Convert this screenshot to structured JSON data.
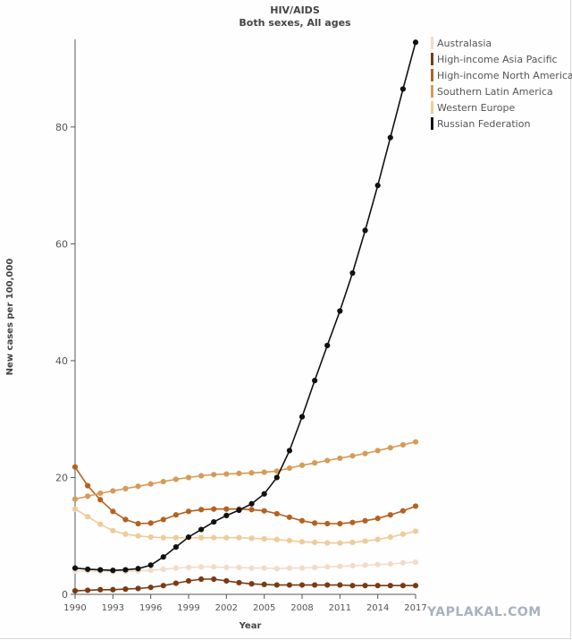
{
  "chart_data": {
    "type": "line",
    "title": "HIV/AIDS",
    "subtitle": "Both sexes, All ages",
    "xlabel": "Year",
    "ylabel": "New cases per 100,000",
    "xlim": [
      1990,
      2017
    ],
    "ylim": [
      0,
      95
    ],
    "x_ticks": [
      "1990",
      "1993",
      "1996",
      "1999",
      "2002",
      "2005",
      "2008",
      "2011",
      "2014",
      "2017"
    ],
    "y_ticks": [
      "0",
      "20",
      "40",
      "60",
      "80"
    ],
    "grid": false,
    "legend_position": "top-right",
    "x": [
      1990,
      1991,
      1992,
      1993,
      1994,
      1995,
      1996,
      1997,
      1998,
      1999,
      2000,
      2001,
      2002,
      2003,
      2004,
      2005,
      2006,
      2007,
      2008,
      2009,
      2010,
      2011,
      2012,
      2013,
      2014,
      2015,
      2016,
      2017
    ],
    "series": [
      {
        "name": "Australasia",
        "color": "#f2dcc8",
        "values": [
          4.0,
          4.0,
          3.9,
          3.9,
          3.9,
          4.0,
          4.1,
          4.3,
          4.5,
          4.6,
          4.7,
          4.7,
          4.6,
          4.6,
          4.5,
          4.5,
          4.4,
          4.5,
          4.5,
          4.6,
          4.7,
          4.8,
          4.9,
          5.0,
          5.1,
          5.2,
          5.4,
          5.5
        ]
      },
      {
        "name": "High-income Asia Pacific",
        "color": "#7a3a12",
        "values": [
          0.6,
          0.7,
          0.8,
          0.8,
          0.9,
          1.0,
          1.2,
          1.5,
          1.9,
          2.3,
          2.6,
          2.6,
          2.3,
          2.0,
          1.8,
          1.7,
          1.6,
          1.6,
          1.6,
          1.6,
          1.6,
          1.6,
          1.5,
          1.5,
          1.5,
          1.5,
          1.5,
          1.5
        ]
      },
      {
        "name": "High-income North America",
        "color": "#b5611f",
        "values": [
          21.8,
          18.6,
          16.2,
          14.2,
          12.8,
          12.1,
          12.2,
          12.8,
          13.6,
          14.2,
          14.5,
          14.6,
          14.6,
          14.6,
          14.5,
          14.3,
          13.8,
          13.2,
          12.6,
          12.2,
          12.1,
          12.1,
          12.3,
          12.6,
          13.0,
          13.6,
          14.3,
          15.1
        ]
      },
      {
        "name": "Southern Latin America",
        "color": "#d89a55",
        "values": [
          16.3,
          16.8,
          17.3,
          17.7,
          18.1,
          18.5,
          18.9,
          19.3,
          19.7,
          20.0,
          20.3,
          20.5,
          20.6,
          20.7,
          20.8,
          20.9,
          21.1,
          21.6,
          22.1,
          22.5,
          22.9,
          23.3,
          23.7,
          24.1,
          24.6,
          25.1,
          25.6,
          26.1
        ]
      },
      {
        "name": "Western Europe",
        "color": "#eecb98",
        "values": [
          14.6,
          13.3,
          12.0,
          10.9,
          10.3,
          10.0,
          9.8,
          9.7,
          9.7,
          9.7,
          9.7,
          9.7,
          9.7,
          9.7,
          9.6,
          9.5,
          9.4,
          9.2,
          9.0,
          8.9,
          8.8,
          8.8,
          8.9,
          9.1,
          9.4,
          9.8,
          10.3,
          10.8
        ]
      },
      {
        "name": "Russian Federation",
        "color": "#111111",
        "values": [
          4.5,
          4.3,
          4.2,
          4.1,
          4.2,
          4.4,
          5.0,
          6.4,
          8.1,
          9.8,
          11.1,
          12.4,
          13.5,
          14.4,
          15.5,
          17.2,
          20.0,
          24.6,
          30.4,
          36.6,
          42.6,
          48.5,
          55.0,
          62.3,
          70.0,
          78.2,
          86.5,
          94.5
        ]
      }
    ]
  },
  "watermark": "YAPLAKAL.COM"
}
